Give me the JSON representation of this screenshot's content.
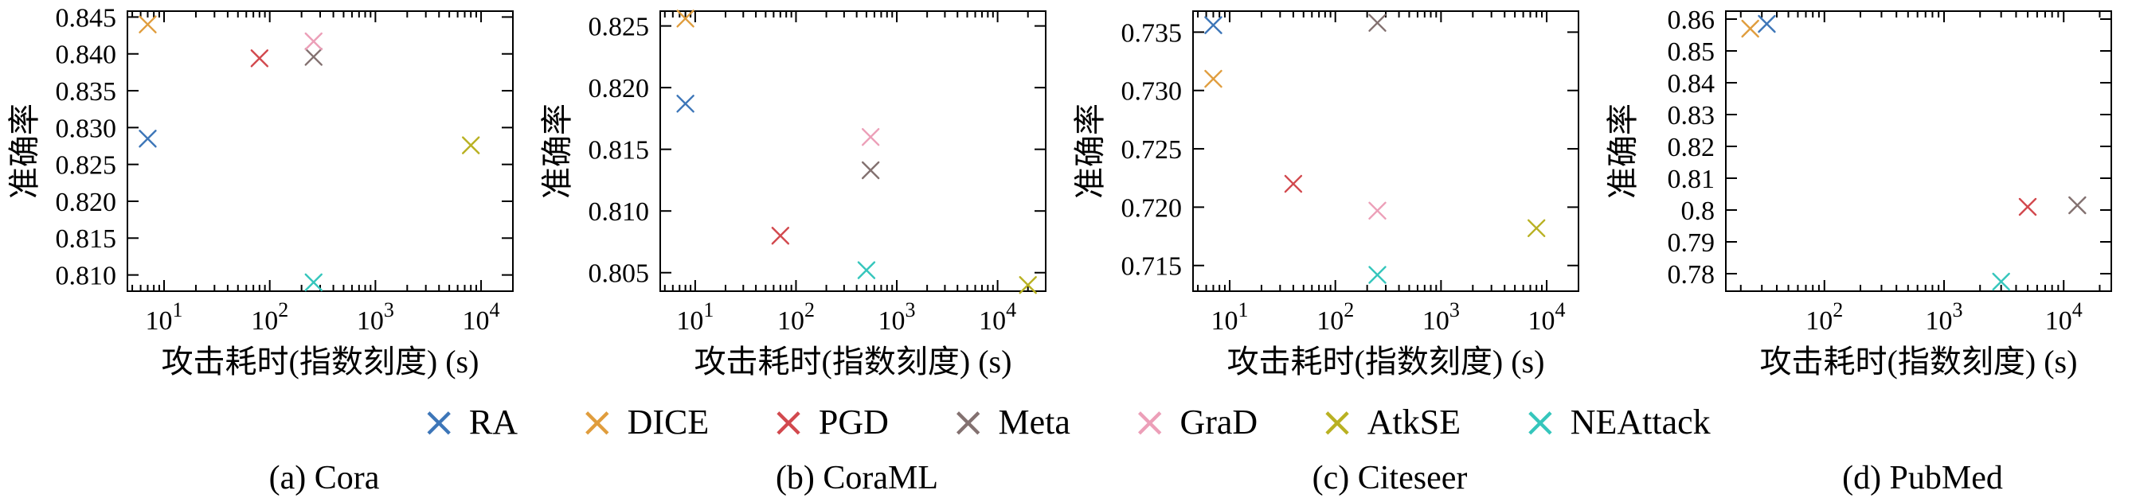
{
  "figure": {
    "background": "#ffffff"
  },
  "legend": {
    "marker_glyph": "×",
    "entries": [
      {
        "label": "RA",
        "color": "#3d76b8"
      },
      {
        "label": "DICE",
        "color": "#e09d3d"
      },
      {
        "label": "PGD",
        "color": "#d2494e"
      },
      {
        "label": "Meta",
        "color": "#837170"
      },
      {
        "label": "GraD",
        "color": "#ec9fb8"
      },
      {
        "label": "AtkSE",
        "color": "#b9b122"
      },
      {
        "label": "NEAttack",
        "color": "#35c6bc"
      }
    ]
  },
  "captions": [
    "(a) Cora",
    "(b) CoraML",
    "(c) Citeseer",
    "(d) PubMed"
  ],
  "chart_data": [
    {
      "type": "scatter",
      "title": "(a) Cora",
      "xlabel": "攻击耗时(指数刻度) (s)",
      "ylabel": "准确率",
      "xscale": "log",
      "xlim": [
        4.5,
        20000
      ],
      "ylim": [
        0.8078,
        0.8458
      ],
      "xtick_exponents": [
        1,
        2,
        3,
        4
      ],
      "yticks": [
        "0.810",
        "0.815",
        "0.820",
        "0.825",
        "0.830",
        "0.835",
        "0.840",
        "0.845"
      ],
      "grid": false,
      "points": [
        {
          "series": "RA",
          "x": 7,
          "y": 0.8285
        },
        {
          "series": "DICE",
          "x": 7,
          "y": 0.844
        },
        {
          "series": "PGD",
          "x": 80,
          "y": 0.8394
        },
        {
          "series": "Meta",
          "x": 260,
          "y": 0.8396
        },
        {
          "series": "GraD",
          "x": 260,
          "y": 0.8417
        },
        {
          "series": "AtkSE",
          "x": 8000,
          "y": 0.8276
        },
        {
          "series": "NEAttack",
          "x": 260,
          "y": 0.809
        }
      ]
    },
    {
      "type": "scatter",
      "title": "(b) CoraML",
      "xlabel": "攻击耗时(指数刻度) (s)",
      "ylabel": "准确率",
      "xscale": "log",
      "xlim": [
        4.5,
        30000
      ],
      "ylim": [
        0.8035,
        0.8262
      ],
      "xtick_exponents": [
        1,
        2,
        3,
        4
      ],
      "yticks": [
        "0.805",
        "0.810",
        "0.815",
        "0.820",
        "0.825"
      ],
      "grid": false,
      "points": [
        {
          "series": "RA",
          "x": 8,
          "y": 0.8187
        },
        {
          "series": "DICE",
          "x": 8,
          "y": 0.8256
        },
        {
          "series": "PGD",
          "x": 70,
          "y": 0.808
        },
        {
          "series": "Meta",
          "x": 550,
          "y": 0.8133
        },
        {
          "series": "GraD",
          "x": 550,
          "y": 0.816
        },
        {
          "series": "AtkSE",
          "x": 20000,
          "y": 0.804
        },
        {
          "series": "NEAttack",
          "x": 500,
          "y": 0.8052
        }
      ]
    },
    {
      "type": "scatter",
      "title": "(c) Citeseer",
      "xlabel": "攻击耗时(指数刻度) (s)",
      "ylabel": "准确率",
      "xscale": "log",
      "xlim": [
        4.5,
        20000
      ],
      "ylim": [
        0.7128,
        0.7368
      ],
      "xtick_exponents": [
        1,
        2,
        3,
        4
      ],
      "yticks": [
        "0.715",
        "0.720",
        "0.725",
        "0.730",
        "0.735"
      ],
      "grid": false,
      "points": [
        {
          "series": "RA",
          "x": 7,
          "y": 0.7356
        },
        {
          "series": "DICE",
          "x": 7,
          "y": 0.731
        },
        {
          "series": "PGD",
          "x": 40,
          "y": 0.722
        },
        {
          "series": "Meta",
          "x": 250,
          "y": 0.7358
        },
        {
          "series": "GraD",
          "x": 250,
          "y": 0.7197
        },
        {
          "series": "AtkSE",
          "x": 8000,
          "y": 0.7182
        },
        {
          "series": "NEAttack",
          "x": 250,
          "y": 0.7142
        }
      ]
    },
    {
      "type": "scatter",
      "title": "(d) PubMed",
      "xlabel": "攻击耗时(指数刻度) (s)",
      "ylabel": "准确率",
      "xscale": "log",
      "xlim": [
        15,
        25000
      ],
      "ylim": [
        0.7745,
        0.8625
      ],
      "xtick_exponents": [
        2,
        3,
        4
      ],
      "yticks": [
        "0.78",
        "0.79",
        "0.8",
        "0.81",
        "0.82",
        "0.83",
        "0.84",
        "0.85",
        "0.86"
      ],
      "grid": false,
      "points": [
        {
          "series": "RA",
          "x": 33,
          "y": 0.8585
        },
        {
          "series": "DICE",
          "x": 24,
          "y": 0.857
        },
        {
          "series": "PGD",
          "x": 5000,
          "y": 0.801
        },
        {
          "series": "Meta",
          "x": 13000,
          "y": 0.8015
        },
        {
          "series": "NEAttack",
          "x": 3000,
          "y": 0.7775
        }
      ]
    }
  ]
}
